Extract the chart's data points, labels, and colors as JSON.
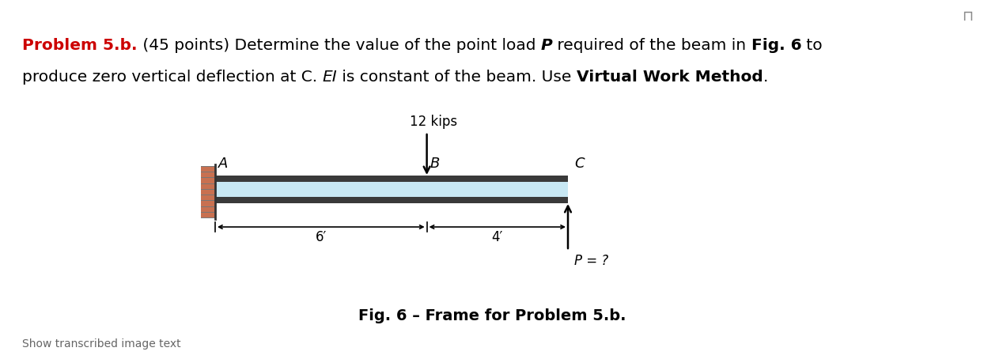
{
  "fig_caption": "Fig. 6 – Frame for Problem 5.b.",
  "bg_color": "#ffffff",
  "text_color": "#000000",
  "red_color": "#cc0000",
  "beam_color_dark": "#3a3a3a",
  "beam_color_mid": "#c8e8f4",
  "wall_color": "#c87050",
  "label_A": "A",
  "label_B": "B",
  "label_C": "C",
  "load_label": "12 kips",
  "dim_6": "6′",
  "dim_4": "4′",
  "p_label": "P = ?"
}
